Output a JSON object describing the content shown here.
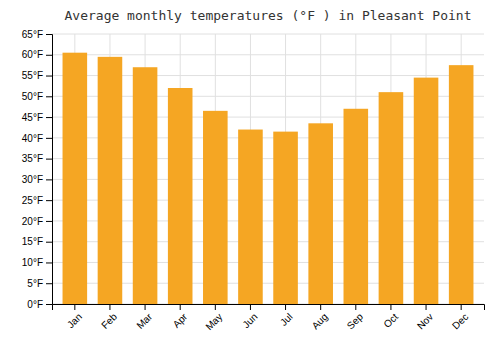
{
  "chart_data": {
    "type": "bar",
    "title": "Average monthly temperatures (°F ) in Pleasant Point",
    "categories": [
      "Jan",
      "Feb",
      "Mar",
      "Apr",
      "May",
      "Jun",
      "Jul",
      "Aug",
      "Sep",
      "Oct",
      "Nov",
      "Dec"
    ],
    "values": [
      60.5,
      59.5,
      57.0,
      52.0,
      46.5,
      42.0,
      41.5,
      43.5,
      47.0,
      51.0,
      54.5,
      57.5
    ],
    "color": "#F5A623",
    "ylim": [
      0,
      65
    ],
    "yticks": [
      {
        "value": 0,
        "label": "0°F"
      },
      {
        "value": 5,
        "label": "5°F"
      },
      {
        "value": 10,
        "label": "10°F"
      },
      {
        "value": 15,
        "label": "15°F"
      },
      {
        "value": 20,
        "label": "20°F"
      },
      {
        "value": 25,
        "label": "25°F"
      },
      {
        "value": 30,
        "label": "30°F"
      },
      {
        "value": 35,
        "label": "35°F"
      },
      {
        "value": 40,
        "label": "40°F"
      },
      {
        "value": 45,
        "label": "45°F"
      },
      {
        "value": 50,
        "label": "50°F"
      },
      {
        "value": 55,
        "label": "55°F"
      },
      {
        "value": 60,
        "label": "60°F"
      },
      {
        "value": 65,
        "label": "65°F"
      }
    ],
    "grid": true
  }
}
